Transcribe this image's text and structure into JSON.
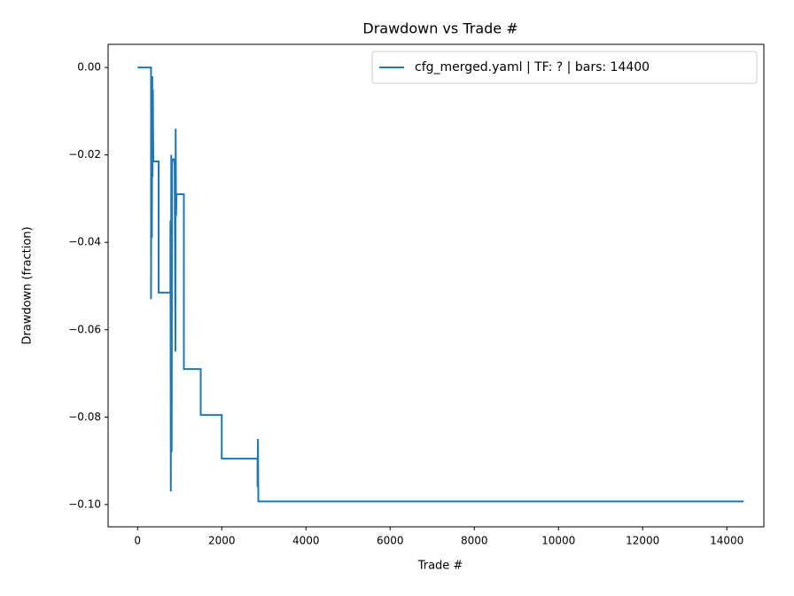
{
  "chart_data": {
    "type": "line",
    "title": "Drawdown vs Trade #",
    "x_label": "Trade #",
    "y_label": "Drawdown (fraction)",
    "x": [
      0,
      320,
      320,
      330,
      340,
      350,
      355,
      365,
      370,
      375,
      500,
      500,
      780,
      780,
      790,
      795,
      800,
      810,
      820,
      840,
      880,
      900,
      905,
      915,
      925,
      1100,
      1100,
      1500,
      1500,
      2000,
      2000,
      2850,
      2850,
      2860,
      2870,
      14400
    ],
    "series": [
      {
        "name": "cfg_merged.yaml | TF: ? | bars: 14400",
        "color": "#1f77b4",
        "values": [
          0,
          0,
          -0.053,
          -0.01,
          -0.039,
          -0.002,
          -0.025,
          -0.005,
          -0.016,
          -0.0215,
          -0.0215,
          -0.0515,
          -0.0515,
          -0.035,
          -0.097,
          -0.062,
          -0.02,
          -0.088,
          -0.022,
          -0.021,
          -0.021,
          -0.065,
          -0.014,
          -0.034,
          -0.029,
          -0.029,
          -0.069,
          -0.069,
          -0.0795,
          -0.0795,
          -0.0895,
          -0.0895,
          -0.096,
          -0.085,
          -0.0993,
          -0.0993
        ]
      }
    ],
    "xlim": [
      -700,
      14880
    ],
    "ylim": [
      -0.1051,
      0.0053
    ],
    "xticks": [
      0,
      2000,
      4000,
      6000,
      8000,
      10000,
      12000,
      14000
    ],
    "yticks": [
      {
        "value": 0,
        "label": "0.00"
      },
      {
        "value": -0.02,
        "label": "−0.02"
      },
      {
        "value": -0.04,
        "label": "−0.04"
      },
      {
        "value": -0.06,
        "label": "−0.06"
      },
      {
        "value": -0.08,
        "label": "−0.08"
      },
      {
        "value": -0.1,
        "label": "−0.10"
      }
    ],
    "legend": "upper right",
    "grid": false
  }
}
